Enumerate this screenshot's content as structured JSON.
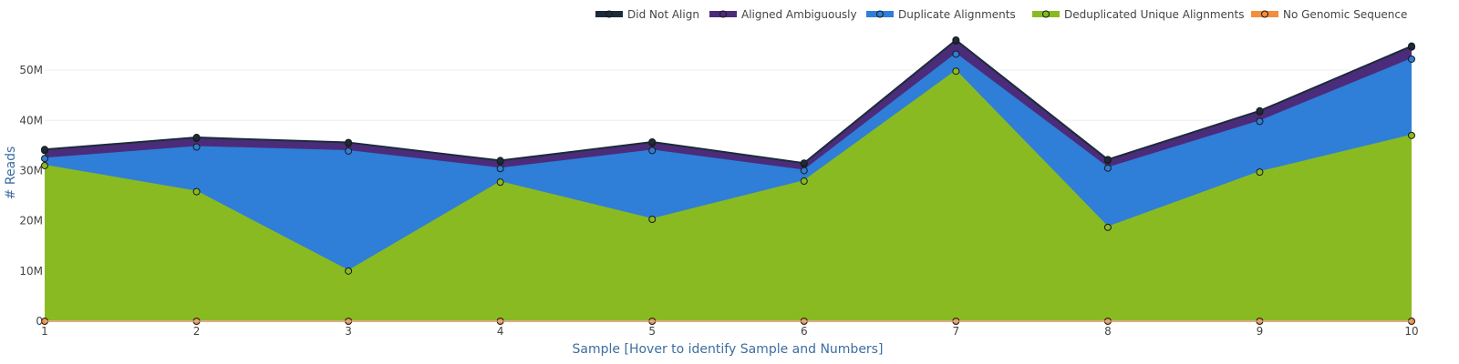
{
  "chart_data": {
    "type": "area",
    "stacked": true,
    "title": "",
    "xlabel": "Sample [Hover to identify Sample and Numbers]",
    "ylabel": "# Reads",
    "x": [
      1,
      2,
      3,
      4,
      5,
      6,
      7,
      8,
      9,
      10
    ],
    "xlim": [
      1,
      10
    ],
    "ylim": [
      0,
      56000000
    ],
    "y_ticks": [
      0,
      10000000,
      20000000,
      30000000,
      40000000,
      50000000
    ],
    "y_tick_labels": [
      "0",
      "10M",
      "20M",
      "30M",
      "40M",
      "50M"
    ],
    "grid": true,
    "legend_position": "top-right",
    "series": [
      {
        "name": "No Genomic Sequence",
        "color": "#f28e3c",
        "values": [
          0,
          0,
          0,
          0,
          0,
          0,
          0,
          0,
          0,
          0
        ]
      },
      {
        "name": "Deduplicated Unique Alignments",
        "color": "#8aba22",
        "values": [
          31000000,
          25800000,
          10000000,
          27700000,
          20300000,
          27900000,
          49800000,
          18700000,
          29700000,
          37000000
        ]
      },
      {
        "name": "Duplicate Alignments",
        "color": "#2f7ed8",
        "values": [
          1400000,
          8900000,
          23900000,
          2700000,
          13700000,
          2100000,
          3400000,
          11800000,
          10100000,
          15200000
        ]
      },
      {
        "name": "Aligned Ambiguously",
        "color": "#4b2c7a",
        "values": [
          1600000,
          1700000,
          1500000,
          1400000,
          1500000,
          1300000,
          2600000,
          1500000,
          1900000,
          2400000
        ]
      },
      {
        "name": "Did Not Align",
        "color": "#1c2b3a",
        "values": [
          200000,
          200000,
          200000,
          200000,
          200000,
          200000,
          200000,
          200000,
          200000,
          200000
        ]
      }
    ],
    "legend_order": [
      "Did Not Align",
      "Aligned Ambiguously",
      "Duplicate Alignments",
      "Deduplicated Unique Alignments",
      "No Genomic Sequence"
    ]
  }
}
